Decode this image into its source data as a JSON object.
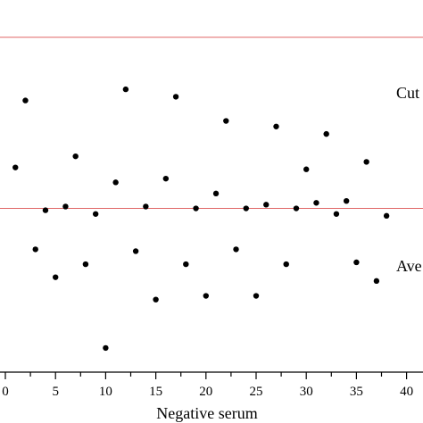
{
  "chart_data": {
    "type": "scatter",
    "title": "",
    "xlabel": "Negative serum",
    "ylabel": "",
    "xlim": [
      0,
      41.6
    ],
    "ylim": [
      0,
      1
    ],
    "x_ticks": [
      {
        "value": 0,
        "label": "0"
      },
      {
        "value": 5,
        "label": "5"
      },
      {
        "value": 10,
        "label": "10"
      },
      {
        "value": 15,
        "label": "15"
      },
      {
        "value": 20,
        "label": "20"
      },
      {
        "value": 25,
        "label": "25"
      },
      {
        "value": 30,
        "label": "30"
      },
      {
        "value": 35,
        "label": "35"
      },
      {
        "value": 40,
        "label": "40"
      }
    ],
    "grid": false,
    "point_color": "#000000",
    "reference_lines": [
      {
        "label": "Cut",
        "y": 0.9,
        "color": "#e06666"
      },
      {
        "label": "Ave",
        "y": 0.44,
        "color": "#e06666"
      }
    ],
    "series": [
      {
        "x": [
          1,
          2,
          3,
          4,
          5,
          6,
          7,
          8,
          9,
          10,
          11,
          12,
          13,
          14,
          15,
          16,
          17,
          18,
          19,
          20,
          21,
          22,
          23,
          24,
          25,
          26,
          27,
          28,
          29,
          30,
          31,
          32,
          33,
          34,
          35,
          36,
          37,
          38
        ],
        "y": [
          0.55,
          0.73,
          0.33,
          0.435,
          0.255,
          0.445,
          0.58,
          0.29,
          0.425,
          0.065,
          0.51,
          0.76,
          0.325,
          0.445,
          0.195,
          0.52,
          0.74,
          0.29,
          0.44,
          0.205,
          0.48,
          0.675,
          0.33,
          0.44,
          0.205,
          0.45,
          0.66,
          0.29,
          0.44,
          0.545,
          0.455,
          0.64,
          0.425,
          0.46,
          0.295,
          0.565,
          0.245,
          0.42
        ]
      }
    ]
  }
}
